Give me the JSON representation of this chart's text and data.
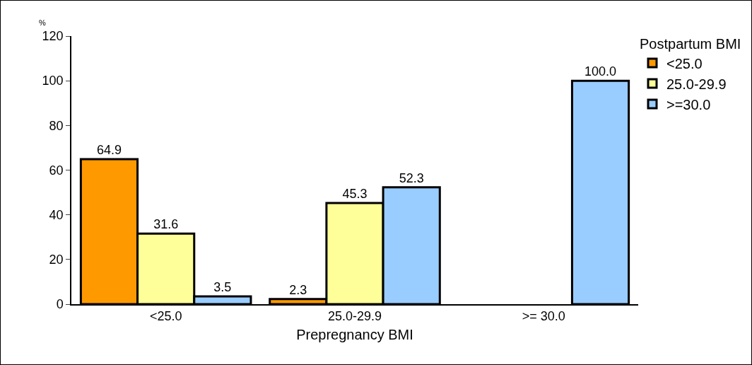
{
  "chart_data": {
    "type": "bar",
    "xlabel": "Prepregnancy BMI",
    "ylabel": "%",
    "legend_title": "Postpartum BMI",
    "categories": [
      "<25.0",
      "25.0-29.9",
      ">= 30.0"
    ],
    "series": [
      {
        "name": "<25.0",
        "color": "#ff9900",
        "values": [
          64.9,
          2.3,
          null
        ],
        "value_labels": [
          "64.9",
          "2.3",
          null
        ]
      },
      {
        "name": "25.0-29.9",
        "color": "#ffff99",
        "values": [
          31.6,
          45.3,
          null
        ],
        "value_labels": [
          "31.6",
          "45.3",
          null
        ]
      },
      {
        "name": ">=30.0",
        "color": "#99ccff",
        "values": [
          3.5,
          52.3,
          100
        ],
        "value_labels": [
          "3.5",
          "52.3",
          "100.0"
        ]
      }
    ],
    "ylim": [
      0,
      120
    ],
    "yticks": [
      0,
      20,
      40,
      60,
      80,
      100,
      120
    ],
    "grid": false,
    "legend": "top right"
  }
}
